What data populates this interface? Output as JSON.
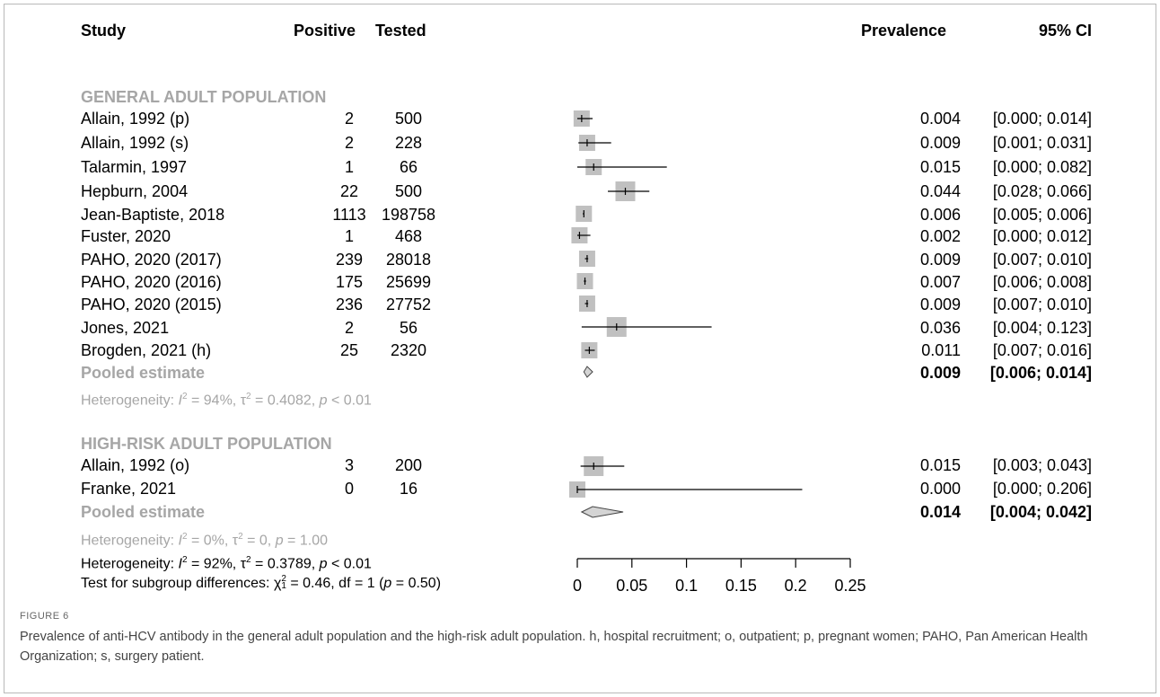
{
  "headers": {
    "study": "Study",
    "positive": "Positive",
    "tested": "Tested",
    "prevalence": "Prevalence",
    "ci": "95% CI"
  },
  "groups": [
    {
      "title": "GENERAL ADULT POPULATION",
      "studies": [
        {
          "study": "Allain, 1992 (p)",
          "positive": "2",
          "tested": "500",
          "prev": "0.004",
          "ci": "[0.000; 0.014]"
        },
        {
          "study": "Allain, 1992 (s)",
          "positive": "2",
          "tested": "228",
          "prev": "0.009",
          "ci": "[0.001; 0.031]"
        },
        {
          "study": "Talarmin, 1997",
          "positive": "1",
          "tested": "66",
          "prev": "0.015",
          "ci": "[0.000; 0.082]"
        },
        {
          "study": "Hepburn, 2004",
          "positive": "22",
          "tested": "500",
          "prev": "0.044",
          "ci": "[0.028; 0.066]"
        },
        {
          "study": "Jean-Baptiste, 2018",
          "positive": "1113",
          "tested": "198758",
          "prev": "0.006",
          "ci": "[0.005; 0.006]"
        },
        {
          "study": "Fuster, 2020",
          "positive": "1",
          "tested": "468",
          "prev": "0.002",
          "ci": "[0.000; 0.012]"
        },
        {
          "study": "PAHO, 2020 (2017)",
          "positive": "239",
          "tested": "28018",
          "prev": "0.009",
          "ci": "[0.007; 0.010]"
        },
        {
          "study": "PAHO, 2020 (2016)",
          "positive": "175",
          "tested": "25699",
          "prev": "0.007",
          "ci": "[0.006; 0.008]"
        },
        {
          "study": "PAHO, 2020 (2015)",
          "positive": "236",
          "tested": "27752",
          "prev": "0.009",
          "ci": "[0.007; 0.010]"
        },
        {
          "study": "Jones, 2021",
          "positive": "2",
          "tested": "56",
          "prev": "0.036",
          "ci": "[0.004; 0.123]"
        },
        {
          "study": "Brogden, 2021 (h)",
          "positive": "25",
          "tested": "2320",
          "prev": "0.011",
          "ci": "[0.007; 0.016]"
        }
      ],
      "pooled": {
        "label": "Pooled estimate",
        "prev": "0.009",
        "ci": "[0.006; 0.014]"
      },
      "het": {
        "prefix": "Heterogeneity: ",
        "I": "I",
        "two": "2",
        "i2": " = 94%, ",
        "tau": "τ",
        "tau2": " = 0.4082, ",
        "p": "p",
        "pval": " < 0.01"
      }
    },
    {
      "title": "HIGH-RISK ADULT POPULATION",
      "studies": [
        {
          "study": "Allain, 1992 (o)",
          "positive": "3",
          "tested": "200",
          "prev": "0.015",
          "ci": "[0.003; 0.043]"
        },
        {
          "study": "Franke, 2021",
          "positive": "0",
          "tested": "16",
          "prev": "0.000",
          "ci": "[0.000; 0.206]"
        }
      ],
      "pooled": {
        "label": "Pooled estimate",
        "prev": "0.014",
        "ci": "[0.004; 0.042]"
      },
      "het": {
        "prefix": "Heterogeneity: ",
        "I": "I",
        "two": "2",
        "i2": " = 0%, ",
        "tau": "τ",
        "tau2": " = 0, ",
        "p": "p",
        "pval": " = 1.00"
      }
    }
  ],
  "overall_het": {
    "prefix": "Heterogeneity: ",
    "I": "I",
    "two": "2",
    "i2": " = 92%, ",
    "tau": "τ",
    "tau2": " = 0.3789, ",
    "p": "p",
    "pval": " < 0.01"
  },
  "subgroup_test": {
    "prefix": "Test for subgroup differences: ",
    "chi": "χ",
    "sup": "2",
    "sub": "1",
    "stat": " = 0.46, df = 1 (",
    "p": "p",
    "pval": " = 0.50)"
  },
  "figure_label": "FIGURE 6",
  "caption": "Prevalence of anti-HCV antibody in the general adult population and the high-risk adult population. h, hospital recruitment; o, outpatient; p, pregnant women; PAHO, Pan American Health Organization; s, surgery patient.",
  "colors": {
    "square": "#c0c0c0",
    "line": "#000000",
    "grey_text": "#a6a6a6",
    "diamond_fill": "#d4d4d4"
  },
  "chart_data": {
    "type": "forest",
    "xlim": [
      0,
      0.25
    ],
    "ticks": [
      "0",
      "0.05",
      "0.1",
      "0.15",
      "0.2",
      "0.25"
    ],
    "tick_values": [
      0,
      0.05,
      0.1,
      0.15,
      0.2,
      0.25
    ],
    "studies": [
      {
        "group": 0,
        "est": 0.004,
        "lo": 0.0,
        "hi": 0.014,
        "weight": 2
      },
      {
        "group": 0,
        "est": 0.009,
        "lo": 0.001,
        "hi": 0.031,
        "weight": 2
      },
      {
        "group": 0,
        "est": 0.015,
        "lo": 0.0,
        "hi": 0.082,
        "weight": 2
      },
      {
        "group": 0,
        "est": 0.044,
        "lo": 0.028,
        "hi": 0.066,
        "weight": 3
      },
      {
        "group": 0,
        "est": 0.006,
        "lo": 0.005,
        "hi": 0.006,
        "weight": 2
      },
      {
        "group": 0,
        "est": 0.002,
        "lo": 0.0,
        "hi": 0.012,
        "weight": 2
      },
      {
        "group": 0,
        "est": 0.009,
        "lo": 0.007,
        "hi": 0.01,
        "weight": 2
      },
      {
        "group": 0,
        "est": 0.007,
        "lo": 0.006,
        "hi": 0.008,
        "weight": 2
      },
      {
        "group": 0,
        "est": 0.009,
        "lo": 0.007,
        "hi": 0.01,
        "weight": 2
      },
      {
        "group": 0,
        "est": 0.036,
        "lo": 0.004,
        "hi": 0.123,
        "weight": 3
      },
      {
        "group": 0,
        "est": 0.011,
        "lo": 0.007,
        "hi": 0.016,
        "weight": 2
      },
      {
        "group": 1,
        "est": 0.015,
        "lo": 0.003,
        "hi": 0.043,
        "weight": 3
      },
      {
        "group": 1,
        "est": 0.0,
        "lo": 0.0,
        "hi": 0.206,
        "weight": 2
      }
    ],
    "pooled": [
      {
        "group": 0,
        "est": 0.009,
        "lo": 0.006,
        "hi": 0.014
      },
      {
        "group": 1,
        "est": 0.014,
        "lo": 0.004,
        "hi": 0.042
      }
    ]
  }
}
